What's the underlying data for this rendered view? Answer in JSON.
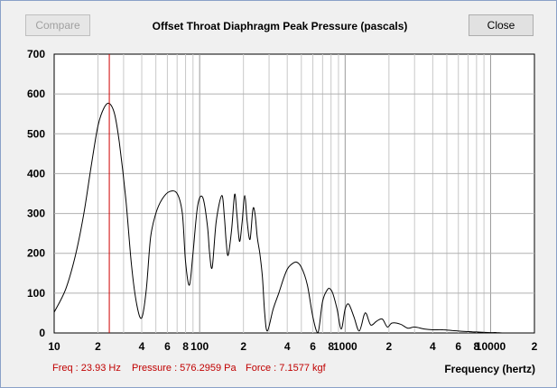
{
  "window": {
    "title": "Offset Throat Diaphragm Peak Pressure (pascals)",
    "compare_label": "Compare",
    "close_label": "Close"
  },
  "status": {
    "freq": "Freq : 23.93 Hz",
    "pressure": "Pressure : 576.2959 Pa",
    "force": "Force : 7.1577 kgf"
  },
  "colors": {
    "curve": "#000000",
    "cursor": "#d00000",
    "grid": "#c8c8c8",
    "plot_bg": "#ffffff"
  },
  "chart_data": {
    "type": "line",
    "title": "Offset Throat Diaphragm Peak Pressure (pascals)",
    "xlabel": "Frequency (hertz)",
    "ylabel": "",
    "x_scale": "log",
    "xlim": [
      10,
      20000
    ],
    "ylim": [
      0,
      700
    ],
    "grid": true,
    "y_ticks": [
      0,
      100,
      200,
      300,
      400,
      500,
      600,
      700
    ],
    "y_tick_labels": [
      "0",
      "100",
      "200",
      "300",
      "400",
      "500",
      "600",
      "700"
    ],
    "x_ticks": [
      10,
      20,
      40,
      60,
      80,
      100,
      200,
      400,
      600,
      800,
      1000,
      2000,
      4000,
      6000,
      8000,
      10000,
      20000
    ],
    "x_tick_labels": [
      "10",
      "2",
      "4",
      "6",
      "8",
      "100",
      "2",
      "4",
      "6",
      "8",
      "1000",
      "2",
      "4",
      "6",
      "8",
      "10000",
      "2"
    ],
    "cursor_x": 23.93,
    "series": [
      {
        "x": [
          10,
          12,
          14,
          16,
          18,
          20,
          22,
          23.93,
          26,
          28,
          31,
          34,
          37,
          40,
          43,
          46,
          50,
          55,
          62,
          70,
          76,
          80,
          85,
          90,
          97,
          105,
          113,
          117,
          122,
          130,
          142,
          148,
          152,
          157,
          166,
          174,
          180,
          188,
          196,
          204,
          212,
          222,
          232,
          240,
          249,
          259,
          270,
          280,
          292,
          320,
          350,
          380,
          400,
          420,
          460,
          500,
          550,
          600,
          650,
          700,
          760,
          800,
          830,
          880,
          940,
          1000,
          1060,
          1150,
          1250,
          1350,
          1400,
          1500,
          1650,
          1800,
          1950,
          2100,
          2400,
          2700,
          3000,
          3500,
          4000,
          4700,
          5500,
          6500,
          7500,
          8500,
          10000,
          11000,
          12000
        ],
        "values": [
          52,
          110,
          195,
          300,
          420,
          520,
          565,
          576,
          550,
          480,
          340,
          170,
          70,
          38,
          110,
          240,
          300,
          335,
          355,
          350,
          300,
          180,
          120,
          200,
          320,
          340,
          270,
          200,
          165,
          280,
          345,
          290,
          230,
          195,
          260,
          348,
          300,
          230,
          280,
          345,
          280,
          235,
          310,
          300,
          240,
          200,
          140,
          50,
          5,
          60,
          100,
          140,
          160,
          170,
          178,
          165,
          120,
          40,
          0,
          80,
          110,
          108,
          95,
          60,
          10,
          60,
          72,
          40,
          5,
          45,
          48,
          20,
          30,
          35,
          15,
          25,
          22,
          12,
          15,
          10,
          8,
          8,
          6,
          4,
          3,
          2,
          1,
          1,
          0
        ]
      }
    ]
  }
}
